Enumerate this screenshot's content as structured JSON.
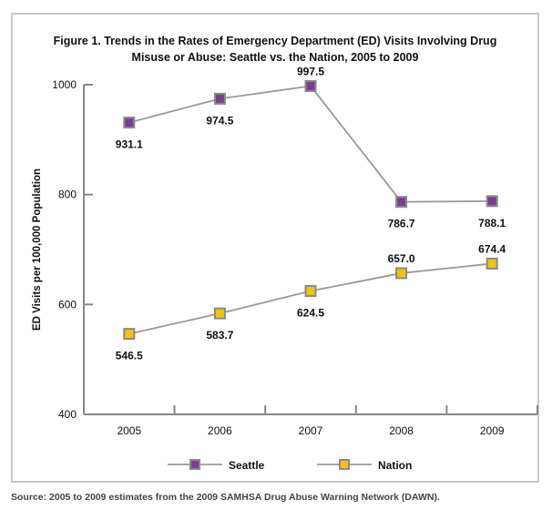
{
  "chart_data": {
    "type": "line",
    "title": "Figure 1. Trends in the Rates of Emergency Department (ED) Visits Involving Drug Misuse or Abuse: Seattle vs. the Nation, 2005 to 2009",
    "title_lines": [
      "Figure 1. Trends in the Rates of Emergency Department (ED) Visits Involving Drug",
      "Misuse or Abuse: Seattle vs. the Nation, 2005 to 2009"
    ],
    "xlabel": "",
    "ylabel": "ED Visits per 100,000 Population",
    "categories": [
      "2005",
      "2006",
      "2007",
      "2008",
      "2009"
    ],
    "ylim": [
      400,
      1000
    ],
    "yticks": [
      400,
      600,
      800,
      1000
    ],
    "grid": false,
    "legend_placement": "bottom",
    "series": [
      {
        "name": "Seattle",
        "values": [
          931.1,
          974.5,
          997.5,
          786.7,
          788.1
        ],
        "labels": [
          "931.1",
          "974.5",
          "997.5",
          "786.7",
          "788.1"
        ],
        "color": "#7b3f8f"
      },
      {
        "name": "Nation",
        "values": [
          546.5,
          583.7,
          624.5,
          657.0,
          674.4
        ],
        "labels": [
          "546.5",
          "583.7",
          "624.5",
          "657.0",
          "674.4"
        ],
        "color": "#f5c400"
      }
    ],
    "line_color": "#999999",
    "source": "Source: 2005 to 2009 estimates from the 2009 SAMHSA Drug Abuse Warning Network (DAWN)."
  }
}
